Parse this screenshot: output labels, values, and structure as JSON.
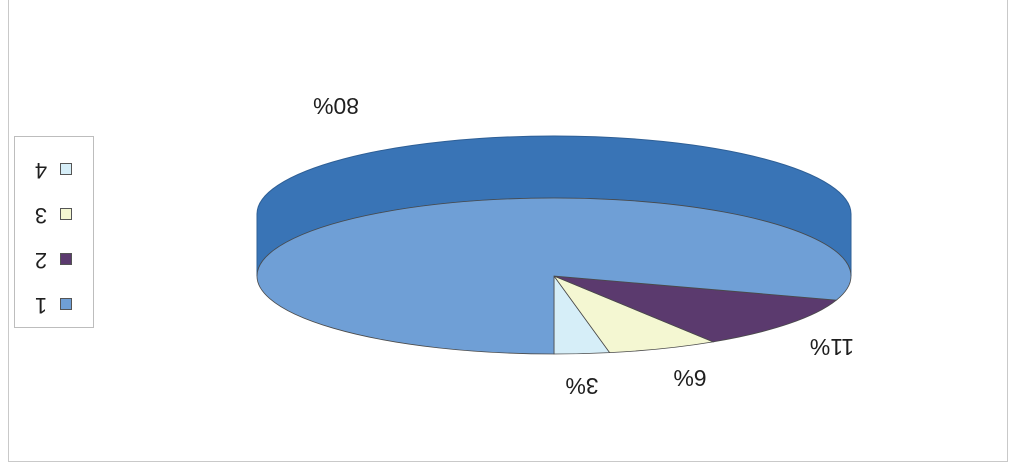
{
  "chart_data": {
    "type": "pie",
    "title": "",
    "style": "3d",
    "orientation": "rotated 180 degrees",
    "legend_position": "left",
    "slices": [
      {
        "category": "1",
        "value": 80,
        "label": "80%",
        "color": "#6f9fd6"
      },
      {
        "category": "2",
        "value": 11,
        "label": "11%",
        "color": "#5b3a6e"
      },
      {
        "category": "3",
        "value": 6,
        "label": "6%",
        "color": "#f4f7d2"
      },
      {
        "category": "4",
        "value": 3,
        "label": "3%",
        "color": "#d6eef8"
      }
    ],
    "side_color": "#3974b6"
  }
}
